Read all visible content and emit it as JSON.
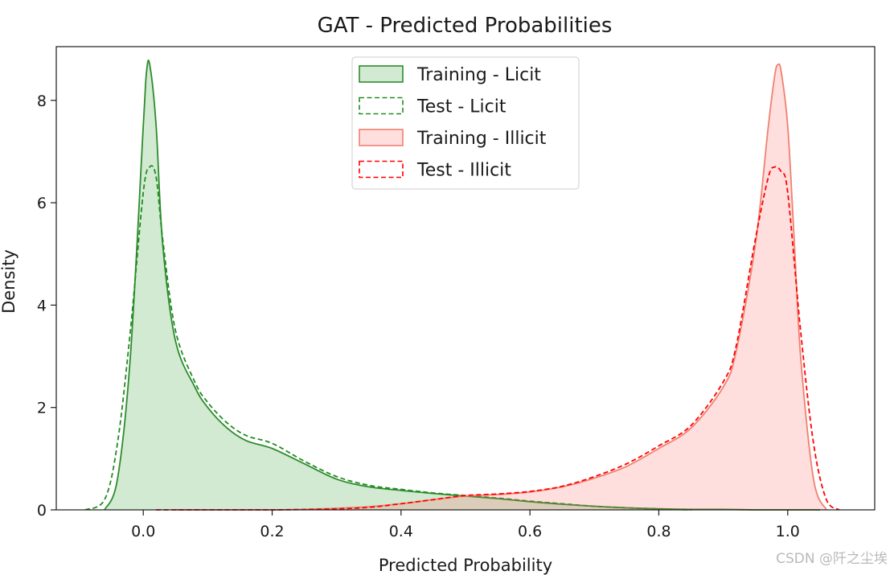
{
  "chart_data": {
    "type": "area",
    "title": "GAT - Predicted Probabilities",
    "xlabel": "Predicted Probability",
    "ylabel": "Density",
    "xlim": [
      -0.135,
      1.135
    ],
    "ylim": [
      0,
      9.05
    ],
    "xticks": [
      "0.0",
      "0.2",
      "0.4",
      "0.6",
      "0.8",
      "1.0"
    ],
    "yticks": [
      "0",
      "2",
      "4",
      "6",
      "8"
    ],
    "grid": false,
    "legend_position": "upper center",
    "series": [
      {
        "name": "Training - Licit",
        "style": "solid",
        "color": "#2e8b2e",
        "fill": "#2ca02c",
        "x": [
          -0.06,
          -0.04,
          -0.02,
          0.0,
          0.005,
          0.01,
          0.02,
          0.03,
          0.05,
          0.08,
          0.1,
          0.13,
          0.16,
          0.2,
          0.25,
          0.3,
          0.35,
          0.4,
          0.45,
          0.5,
          0.55,
          0.6,
          0.65,
          0.7,
          0.75,
          0.8,
          0.85,
          0.9,
          0.95,
          1.0,
          1.05
        ],
        "y": [
          0.0,
          0.6,
          3.0,
          7.5,
          8.55,
          8.7,
          7.5,
          5.2,
          3.3,
          2.4,
          2.0,
          1.6,
          1.35,
          1.2,
          0.9,
          0.6,
          0.45,
          0.38,
          0.32,
          0.27,
          0.22,
          0.16,
          0.11,
          0.07,
          0.04,
          0.02,
          0.01,
          0.01,
          0.0,
          0.0,
          0.0
        ]
      },
      {
        "name": "Test - Licit",
        "style": "dashed",
        "color": "#228b22",
        "fill": "none",
        "x": [
          -0.09,
          -0.06,
          -0.04,
          -0.02,
          0.0,
          0.01,
          0.02,
          0.03,
          0.05,
          0.08,
          0.1,
          0.13,
          0.16,
          0.2,
          0.25,
          0.3,
          0.35,
          0.4,
          0.45,
          0.5,
          0.55,
          0.6,
          0.65,
          0.7,
          0.75,
          0.8,
          0.85
        ],
        "y": [
          0.0,
          0.2,
          1.3,
          3.5,
          6.2,
          6.7,
          6.5,
          5.3,
          3.5,
          2.5,
          2.1,
          1.7,
          1.45,
          1.3,
          0.95,
          0.65,
          0.48,
          0.4,
          0.33,
          0.28,
          0.23,
          0.17,
          0.12,
          0.07,
          0.04,
          0.02,
          0.0
        ]
      },
      {
        "name": "Training - Illicit",
        "style": "solid",
        "color": "#f08070",
        "fill": "#ff6a6a",
        "x": [
          0.05,
          0.1,
          0.15,
          0.2,
          0.25,
          0.3,
          0.35,
          0.4,
          0.45,
          0.5,
          0.55,
          0.6,
          0.65,
          0.7,
          0.75,
          0.8,
          0.85,
          0.9,
          0.92,
          0.95,
          0.97,
          0.98,
          0.985,
          0.99,
          1.0,
          1.01,
          1.02,
          1.04,
          1.06
        ],
        "y": [
          0.0,
          0.0,
          0.0,
          0.0,
          0.01,
          0.03,
          0.06,
          0.12,
          0.2,
          0.27,
          0.3,
          0.35,
          0.45,
          0.62,
          0.85,
          1.2,
          1.6,
          2.4,
          3.1,
          5.2,
          7.5,
          8.5,
          8.7,
          8.55,
          7.5,
          5.3,
          3.0,
          0.6,
          0.0
        ]
      },
      {
        "name": "Test - Illicit",
        "style": "dashed",
        "color": "#ff0000",
        "fill": "none",
        "x": [
          0.02,
          0.1,
          0.2,
          0.3,
          0.35,
          0.4,
          0.45,
          0.5,
          0.55,
          0.6,
          0.65,
          0.7,
          0.75,
          0.8,
          0.85,
          0.9,
          0.92,
          0.95,
          0.97,
          0.98,
          0.99,
          1.0,
          1.02,
          1.04,
          1.06,
          1.08
        ],
        "y": [
          0.0,
          0.0,
          0.0,
          0.02,
          0.05,
          0.12,
          0.2,
          0.28,
          0.31,
          0.36,
          0.46,
          0.65,
          0.9,
          1.25,
          1.65,
          2.5,
          3.2,
          5.3,
          6.5,
          6.7,
          6.6,
          6.2,
          3.5,
          1.3,
          0.2,
          0.0
        ]
      }
    ]
  },
  "watermark": "CSDN @阡之尘埃"
}
